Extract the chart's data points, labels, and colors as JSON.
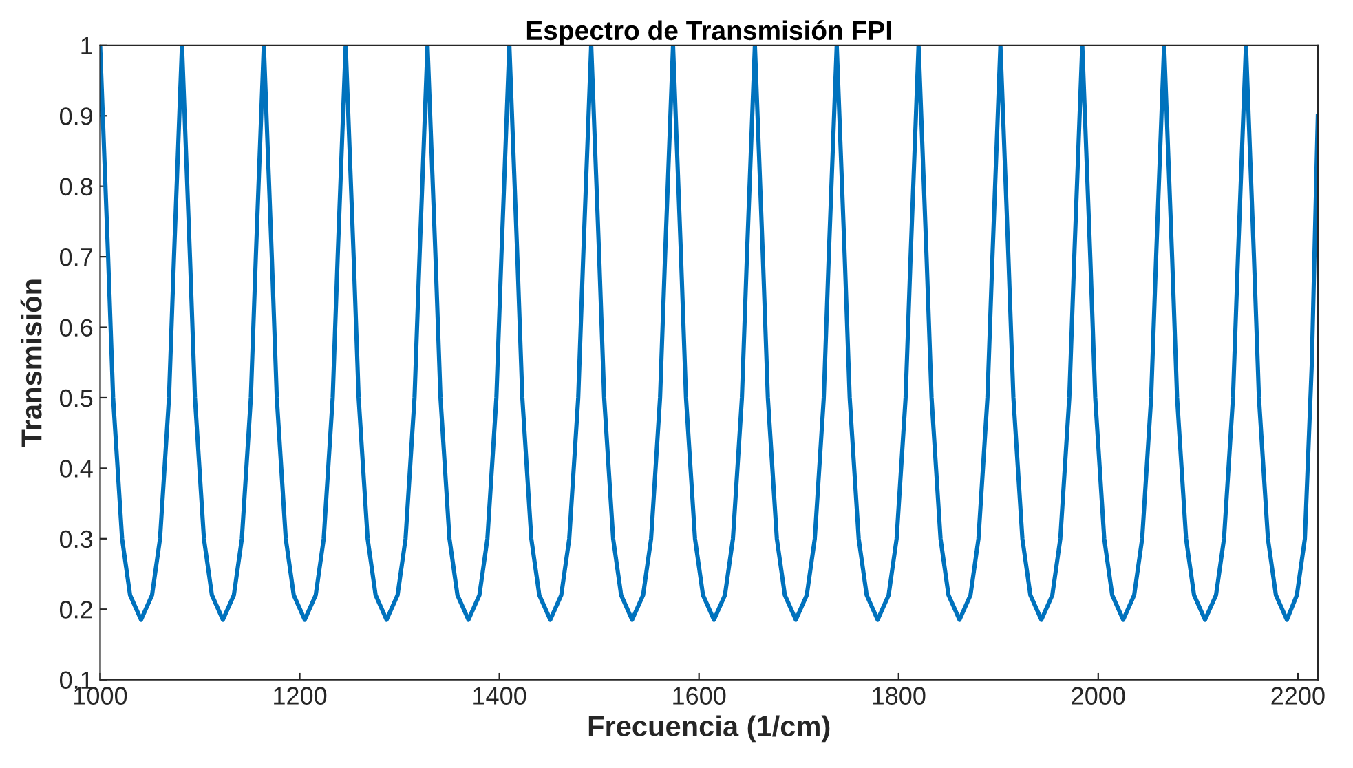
{
  "chart_data": {
    "type": "line",
    "title": "Espectro de Transmisión FPI",
    "xlabel": "Frecuencia (1/cm)",
    "ylabel": "Transmisión",
    "xlim": [
      1000,
      2220
    ],
    "ylim": [
      0.1,
      1
    ],
    "xticks": [
      1000,
      1200,
      1400,
      1600,
      1800,
      2000,
      2200
    ],
    "yticks": [
      0.1,
      0.2,
      0.3,
      0.4,
      0.5,
      0.6,
      0.7,
      0.8,
      0.9,
      1
    ],
    "grid": false,
    "marker": "none",
    "line_style": "solid",
    "series": [
      {
        "color": "#0072bd",
        "x": [
          1000,
          1008,
          1013,
          1022,
          1030,
          1041,
          1052,
          1060,
          1069,
          1074,
          1082,
          1090,
          1095,
          1104,
          1112,
          1123,
          1134,
          1142,
          1151,
          1156,
          1164,
          1172,
          1177,
          1186,
          1194,
          1205,
          1216,
          1224,
          1233,
          1238,
          1246,
          1254,
          1259,
          1268,
          1276,
          1287,
          1298,
          1306,
          1315,
          1320,
          1328,
          1336,
          1341,
          1350,
          1358,
          1369,
          1380,
          1388,
          1397,
          1402,
          1410,
          1418,
          1423,
          1432,
          1440,
          1451,
          1462,
          1470,
          1479,
          1484,
          1492,
          1500,
          1505,
          1514,
          1522,
          1533,
          1544,
          1552,
          1561,
          1566,
          1574,
          1582,
          1587,
          1596,
          1604,
          1615,
          1626,
          1634,
          1643,
          1648,
          1656,
          1664,
          1669,
          1678,
          1686,
          1697,
          1708,
          1716,
          1725,
          1730,
          1738,
          1746,
          1751,
          1760,
          1768,
          1779,
          1790,
          1798,
          1807,
          1812,
          1820,
          1828,
          1833,
          1842,
          1850,
          1861,
          1872,
          1880,
          1889,
          1894,
          1902,
          1910,
          1915,
          1924,
          1932,
          1943,
          1954,
          1962,
          1971,
          1976,
          1984,
          1992,
          1997,
          2006,
          2014,
          2025,
          2036,
          2044,
          2053,
          2058,
          2066,
          2074,
          2079,
          2088,
          2096,
          2107,
          2118,
          2126,
          2135,
          2140,
          2148,
          2156,
          2161,
          2170,
          2178,
          2189,
          2199,
          2207,
          2214,
          2220
        ],
        "values": [
          1,
          0.7,
          0.5,
          0.3,
          0.22,
          0.185,
          0.22,
          0.3,
          0.5,
          0.7,
          1,
          0.7,
          0.5,
          0.3,
          0.22,
          0.185,
          0.22,
          0.3,
          0.5,
          0.7,
          1,
          0.7,
          0.5,
          0.3,
          0.22,
          0.185,
          0.22,
          0.3,
          0.5,
          0.7,
          1,
          0.7,
          0.5,
          0.3,
          0.22,
          0.185,
          0.22,
          0.3,
          0.5,
          0.7,
          1,
          0.7,
          0.5,
          0.3,
          0.22,
          0.185,
          0.22,
          0.3,
          0.5,
          0.7,
          1,
          0.7,
          0.5,
          0.3,
          0.22,
          0.185,
          0.22,
          0.3,
          0.5,
          0.7,
          1,
          0.7,
          0.5,
          0.3,
          0.22,
          0.185,
          0.22,
          0.3,
          0.5,
          0.7,
          1,
          0.7,
          0.5,
          0.3,
          0.22,
          0.185,
          0.22,
          0.3,
          0.5,
          0.7,
          1,
          0.7,
          0.5,
          0.3,
          0.22,
          0.185,
          0.22,
          0.3,
          0.5,
          0.7,
          1,
          0.7,
          0.5,
          0.3,
          0.22,
          0.185,
          0.22,
          0.3,
          0.5,
          0.7,
          1,
          0.7,
          0.5,
          0.3,
          0.22,
          0.185,
          0.22,
          0.3,
          0.5,
          0.7,
          1,
          0.7,
          0.5,
          0.3,
          0.22,
          0.185,
          0.22,
          0.3,
          0.5,
          0.7,
          1,
          0.7,
          0.5,
          0.3,
          0.22,
          0.185,
          0.22,
          0.3,
          0.5,
          0.7,
          1,
          0.7,
          0.5,
          0.3,
          0.22,
          0.185,
          0.22,
          0.3,
          0.5,
          0.7,
          1,
          0.7,
          0.5,
          0.3,
          0.22,
          0.185,
          0.22,
          0.3,
          0.55,
          0.9
        ]
      }
    ]
  }
}
